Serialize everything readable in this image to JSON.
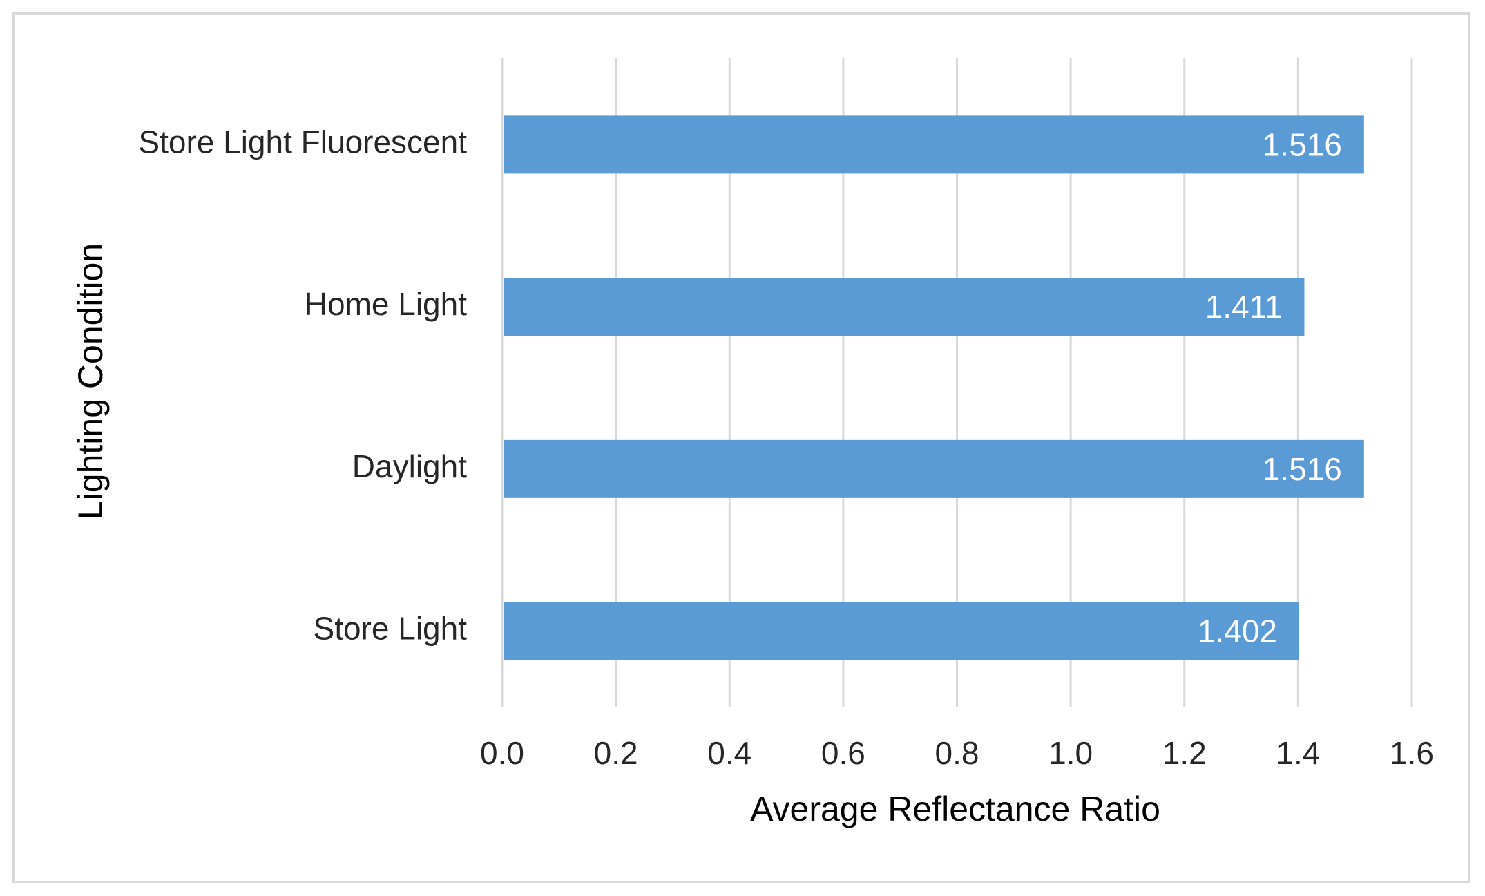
{
  "chart_data": {
    "type": "bar",
    "orientation": "horizontal",
    "title": "",
    "xlabel": "Average Reflectance Ratio",
    "ylabel": "Lighting Condition",
    "categories": [
      "Store Light Fluorescent",
      "Home Light",
      "Daylight",
      "Store Light"
    ],
    "values": [
      1.516,
      1.411,
      1.516,
      1.402
    ],
    "data_labels": [
      "1.516",
      "1.411",
      "1.516",
      "1.402"
    ],
    "xlim": [
      0,
      1.6
    ],
    "x_ticks": [
      "0.0",
      "0.2",
      "0.4",
      "0.6",
      "0.8",
      "1.0",
      "1.2",
      "1.4",
      "1.6"
    ],
    "grid": "vertical",
    "legend": "none",
    "bar_color": "#5b9bd5",
    "grid_color": "#d9d9d9",
    "border_color": "#d9d9d9"
  }
}
